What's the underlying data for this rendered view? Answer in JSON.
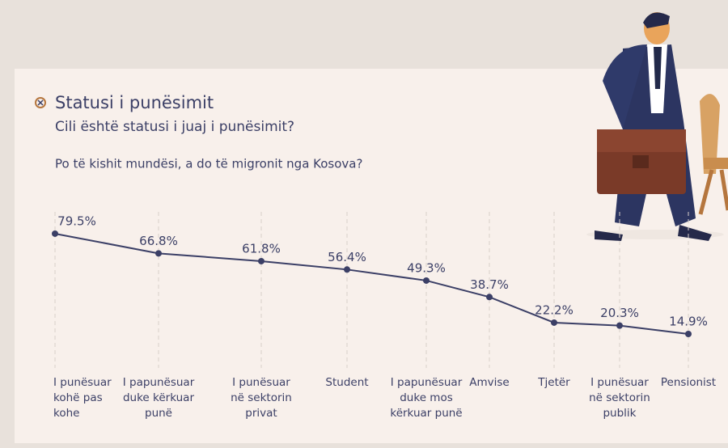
{
  "chart_data": {
    "type": "line",
    "title": "Statusi i punësimit",
    "subtitle": "Cili është statusi i juaj i punësimit?",
    "question": "Po të kishit mundësi, a do të migronit nga Kosova?",
    "categories": [
      "I punësuar kohë pas kohe",
      "I papunësuar duke kërkuar punë",
      "I punësuar në sektorin privat",
      "Student",
      "I papunësuar duke mos kërkuar punë",
      "Amvise",
      "Tjetër",
      "I punësuar në sektorin publik",
      "Pensionist"
    ],
    "values": [
      79.5,
      66.8,
      61.8,
      56.4,
      49.3,
      38.7,
      22.2,
      20.3,
      14.9
    ],
    "value_labels": [
      "79.5%",
      "66.8%",
      "61.8%",
      "56.4%",
      "49.3%",
      "38.7%",
      "22.2%",
      "20.3%",
      "14.9%"
    ],
    "color": "#3b3f66"
  }
}
